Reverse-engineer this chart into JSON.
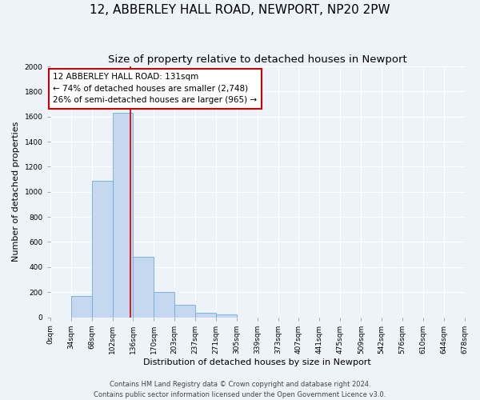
{
  "title": "12, ABBERLEY HALL ROAD, NEWPORT, NP20 2PW",
  "subtitle": "Size of property relative to detached houses in Newport",
  "xlabel": "Distribution of detached houses by size in Newport",
  "ylabel": "Number of detached properties",
  "bin_edges": [
    0,
    34,
    68,
    102,
    136,
    170,
    203,
    237,
    271,
    305,
    339,
    373,
    407,
    441,
    475,
    509,
    542,
    576,
    610,
    644,
    678
  ],
  "bar_heights": [
    0,
    170,
    1090,
    1630,
    480,
    200,
    100,
    35,
    20,
    0,
    0,
    0,
    0,
    0,
    0,
    0,
    0,
    0,
    0,
    0
  ],
  "bar_color": "#c5d8f0",
  "bar_edge_color": "#6baed6",
  "vline_x": 131,
  "vline_color": "#cc0000",
  "ylim": [
    0,
    2000
  ],
  "xlim": [
    0,
    678
  ],
  "annotation_title": "12 ABBERLEY HALL ROAD: 131sqm",
  "annotation_line1": "← 74% of detached houses are smaller (2,748)",
  "annotation_line2": "26% of semi-detached houses are larger (965) →",
  "annotation_box_color": "#ffffff",
  "annotation_border_color": "#cc0000",
  "footer_line1": "Contains HM Land Registry data © Crown copyright and database right 2024.",
  "footer_line2": "Contains public sector information licensed under the Open Government Licence v3.0.",
  "tick_labels": [
    "0sqm",
    "34sqm",
    "68sqm",
    "102sqm",
    "136sqm",
    "170sqm",
    "203sqm",
    "237sqm",
    "271sqm",
    "305sqm",
    "339sqm",
    "373sqm",
    "407sqm",
    "441sqm",
    "475sqm",
    "509sqm",
    "542sqm",
    "576sqm",
    "610sqm",
    "644sqm",
    "678sqm"
  ],
  "background_color": "#eef2f9",
  "grid_color": "#ffffff",
  "title_fontsize": 11,
  "subtitle_fontsize": 9.5,
  "axis_label_fontsize": 8,
  "tick_fontsize": 6.5,
  "annotation_fontsize": 7.5,
  "footer_fontsize": 6
}
